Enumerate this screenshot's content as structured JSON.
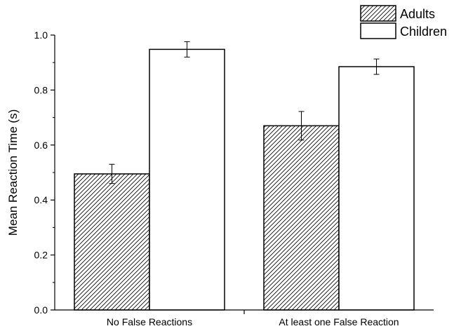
{
  "chart_data": {
    "type": "bar",
    "title": "",
    "xlabel": "",
    "ylabel": "Mean Reaction Time (s)",
    "ylim": [
      0,
      1.0
    ],
    "yticks": [
      0.0,
      0.2,
      0.4,
      0.6,
      0.8,
      1.0
    ],
    "ytick_labels": [
      "0.0",
      "0.2",
      "0.4",
      "0.6",
      "0.8",
      "1.0"
    ],
    "categories": [
      "No False Reactions",
      "At least one False Reaction"
    ],
    "series": [
      {
        "name": "Adults",
        "values": [
          0.495,
          0.67
        ],
        "errors": [
          0.035,
          0.052
        ],
        "pattern": "diagonal-hatch",
        "color": "#000000"
      },
      {
        "name": "Children",
        "values": [
          0.948,
          0.885
        ],
        "errors": [
          0.028,
          0.028
        ],
        "pattern": "none",
        "color": "#000000"
      }
    ],
    "grid": false,
    "legend": "top-right"
  }
}
